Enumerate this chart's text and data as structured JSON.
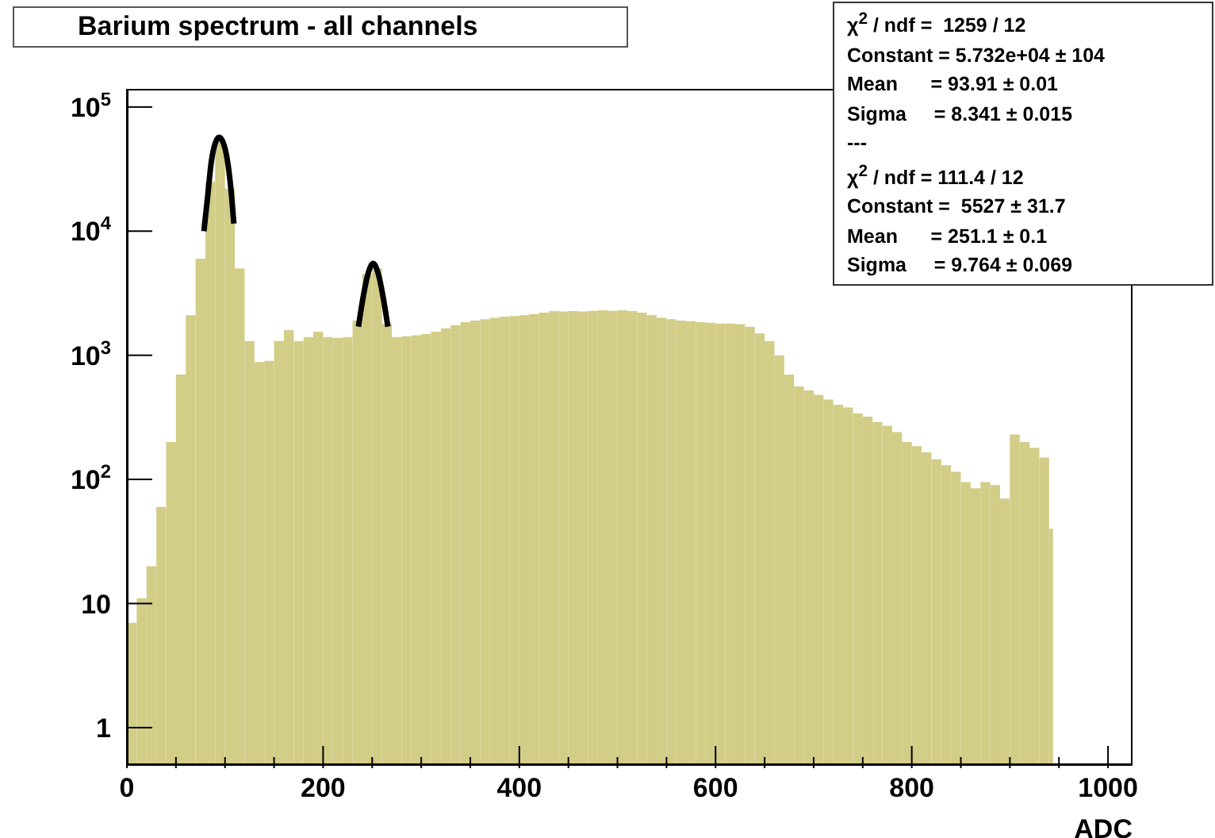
{
  "chart_data": {
    "type": "histogram",
    "title": "Barium spectrum - all channels",
    "xlabel": "ADC",
    "color": "#d2cd87",
    "log": true,
    "bins": [
      0,
      10,
      20,
      30,
      40,
      50,
      60,
      70,
      80,
      90,
      100,
      110,
      120,
      130,
      140,
      150,
      160,
      170,
      180,
      190,
      200,
      210,
      220,
      230,
      240,
      250,
      260,
      270,
      280,
      290,
      300,
      310,
      320,
      330,
      340,
      350,
      360,
      370,
      380,
      390,
      400,
      410,
      420,
      430,
      440,
      450,
      460,
      470,
      480,
      490,
      500,
      510,
      520,
      530,
      540,
      550,
      560,
      570,
      580,
      590,
      600,
      610,
      620,
      630,
      640,
      650,
      660,
      670,
      680,
      690,
      700,
      710,
      720,
      730,
      740,
      750,
      760,
      770,
      780,
      790,
      800,
      810,
      820,
      830,
      840,
      850,
      860,
      870,
      880,
      890,
      900,
      910,
      920,
      930,
      940,
      944
    ],
    "values": [
      7,
      11,
      20,
      60,
      200,
      700,
      2100,
      6000,
      25000,
      55000,
      22000,
      5000,
      1300,
      880,
      900,
      1300,
      1600,
      1300,
      1400,
      1550,
      1400,
      1380,
      1400,
      1900,
      4500,
      5000,
      1800,
      1400,
      1420,
      1450,
      1480,
      1550,
      1650,
      1750,
      1850,
      1900,
      1950,
      2000,
      2050,
      2070,
      2100,
      2150,
      2200,
      2270,
      2250,
      2270,
      2250,
      2280,
      2300,
      2280,
      2300,
      2270,
      2200,
      2100,
      2000,
      1950,
      1900,
      1880,
      1850,
      1830,
      1800,
      1800,
      1780,
      1700,
      1500,
      1300,
      1000,
      700,
      560,
      520,
      480,
      440,
      400,
      380,
      340,
      320,
      290,
      270,
      240,
      200,
      185,
      165,
      145,
      130,
      115,
      95,
      85,
      95,
      90,
      70,
      230,
      200,
      180,
      150,
      40
    ],
    "series": [
      {
        "type": "line",
        "color": "#000000",
        "x": [
          78.5,
          82,
          86,
          90,
          94,
          98,
          102,
          106,
          109
        ],
        "values": [
          10000,
          18000,
          36000,
          51000,
          57000,
          52000,
          39000,
          22000,
          11500
        ]
      },
      {
        "type": "line",
        "color": "#000000",
        "x": [
          236,
          241,
          246,
          251,
          256,
          261,
          266
        ],
        "values": [
          1700,
          3000,
          4600,
          5500,
          4600,
          3000,
          1700
        ]
      }
    ],
    "xlim": [
      0,
      1025
    ],
    "xticks": [
      0,
      {
        "value": 50,
        "label": null
      },
      {
        "value": 100,
        "label": null
      },
      {
        "value": 150,
        "label": null
      },
      200,
      {
        "value": 250,
        "label": null
      },
      {
        "value": 300,
        "label": null
      },
      {
        "value": 350,
        "label": null
      },
      400,
      {
        "value": 450,
        "label": null
      },
      {
        "value": 500,
        "label": null
      },
      {
        "value": 550,
        "label": null
      },
      600,
      {
        "value": 650,
        "label": null
      },
      {
        "value": 700,
        "label": null
      },
      {
        "value": 750,
        "label": null
      },
      800,
      {
        "value": 850,
        "label": null
      },
      {
        "value": 900,
        "label": null
      },
      {
        "value": 950,
        "label": null
      },
      1000
    ],
    "ylim": [
      0.5,
      140000
    ],
    "yticks": [
      1,
      10,
      {
        "value": 100,
        "label": "10$^{2}$"
      },
      {
        "value": 1000,
        "label": "10$^{3}$"
      },
      {
        "value": 10000,
        "label": "10$^{4}$"
      },
      {
        "value": 100000,
        "label": "10$^{5}$"
      }
    ],
    "annotations": [
      "χ$^{2}$ / ndf =  1259 / 12",
      "Constant = 5.732e+04 ± 104",
      "Mean      = 93.91 ± 0.01",
      "Sigma     = 8.341 ± 0.015",
      "---",
      "χ$^{2}$ / ndf = 111.4 / 12",
      "Constant =  5527 ± 31.7",
      "Mean      = 251.1 ± 0.1",
      "Sigma     = 9.764 ± 0.069"
    ]
  }
}
